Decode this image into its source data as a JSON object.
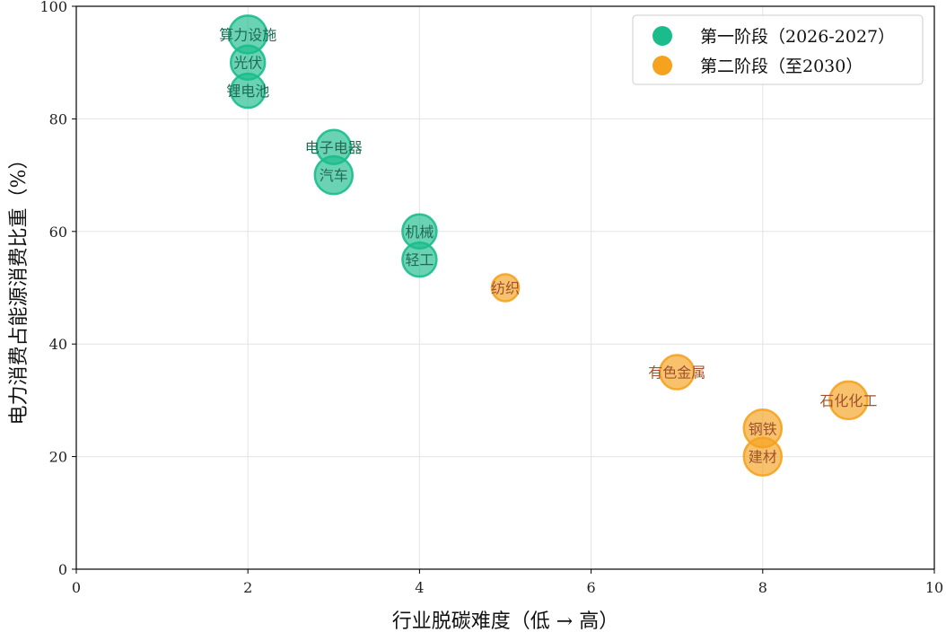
{
  "chart_data": {
    "type": "scatter",
    "title": "",
    "xlabel": "行业脱碳难度（低 → 高）",
    "ylabel": "电力消费占能源消费比重（%）",
    "xlim": [
      0,
      10
    ],
    "ylim": [
      0,
      100
    ],
    "x_ticks": [
      "0",
      "2",
      "4",
      "6",
      "8",
      "10"
    ],
    "y_ticks": [
      "0",
      "20",
      "40",
      "60",
      "80",
      "100"
    ],
    "grid": true,
    "legend_position": "top-right",
    "series": [
      {
        "name": "第一阶段（2026-2027）",
        "color": "#1abc8c",
        "label_color": "#1e6b52",
        "points": [
          {
            "label": "算力设施",
            "x": 2,
            "y": 95,
            "size": 2
          },
          {
            "label": "光伏",
            "x": 2,
            "y": 90,
            "size": 1
          },
          {
            "label": "锂电池",
            "x": 2,
            "y": 85,
            "size": 1
          },
          {
            "label": "电子电器",
            "x": 3,
            "y": 75,
            "size": 1
          },
          {
            "label": "汽车",
            "x": 3,
            "y": 70,
            "size": 2
          },
          {
            "label": "机械",
            "x": 4,
            "y": 60,
            "size": 1
          },
          {
            "label": "轻工",
            "x": 4,
            "y": 55,
            "size": 1
          }
        ]
      },
      {
        "name": "第二阶段（至2030）",
        "color": "#f5a21e",
        "label_color": "#a0522d",
        "points": [
          {
            "label": "纺织",
            "x": 5,
            "y": 50,
            "size": 0
          },
          {
            "label": "有色金属",
            "x": 7,
            "y": 35,
            "size": 1
          },
          {
            "label": "石化化工",
            "x": 9,
            "y": 30,
            "size": 2
          },
          {
            "label": "钢铁",
            "x": 8,
            "y": 25,
            "size": 2
          },
          {
            "label": "建材",
            "x": 8,
            "y": 20,
            "size": 2
          }
        ]
      }
    ]
  }
}
